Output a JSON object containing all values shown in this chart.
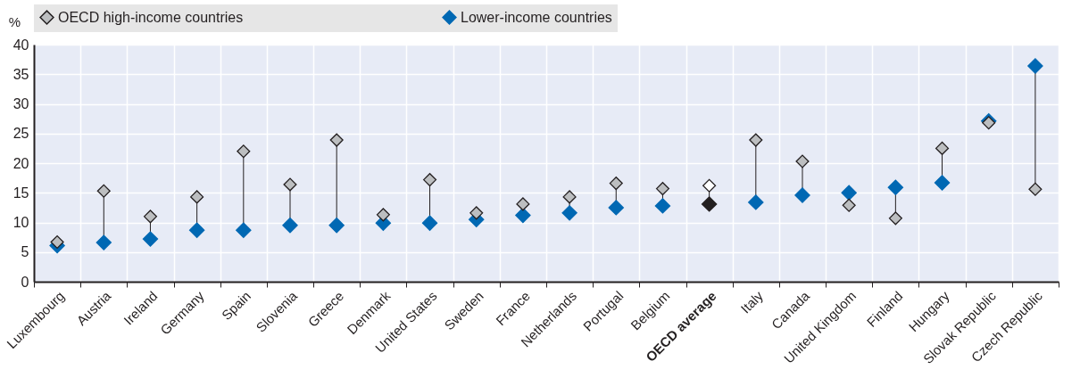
{
  "chart_data": {
    "type": "scatter",
    "ylabel": "%",
    "categories": [
      "Luxembourg",
      "Austria",
      "Ireland",
      "Germany",
      "Spain",
      "Slovenia",
      "Greece",
      "Denmark",
      "United States",
      "Sweden",
      "France",
      "Netherlands",
      "Portugal",
      "Belgium",
      "OECD average",
      "Italy",
      "Canada",
      "United Kingdom",
      "Finland",
      "Hungary",
      "Slovak Republic",
      "Czech Republic"
    ],
    "ylim": [
      0,
      40
    ],
    "yticks": [
      0,
      5,
      10,
      15,
      20,
      25,
      30,
      35,
      40
    ],
    "grid": true,
    "legend": "top",
    "marker": "diamond",
    "series": [
      {
        "name": "OECD high-income countries",
        "color": "#bcbec0",
        "colors": [
          "#bcbec0",
          "#bcbec0",
          "#bcbec0",
          "#bcbec0",
          "#bcbec0",
          "#bcbec0",
          "#bcbec0",
          "#bcbec0",
          "#bcbec0",
          "#bcbec0",
          "#bcbec0",
          "#bcbec0",
          "#bcbec0",
          "#bcbec0",
          "#ffffff",
          "#bcbec0",
          "#bcbec0",
          "#bcbec0",
          "#bcbec0",
          "#bcbec0",
          "#bcbec0",
          "#bcbec0"
        ],
        "values": [
          6.7,
          15.3,
          11.0,
          14.3,
          22.0,
          16.4,
          23.9,
          11.3,
          17.2,
          11.6,
          13.1,
          14.3,
          16.6,
          15.7,
          16.2,
          23.9,
          20.3,
          12.9,
          10.7,
          22.5,
          26.8,
          15.6
        ]
      },
      {
        "name": "Lower-income countries",
        "color": "#0068b3",
        "colors": [
          "#0068b3",
          "#0068b3",
          "#0068b3",
          "#0068b3",
          "#0068b3",
          "#0068b3",
          "#0068b3",
          "#0068b3",
          "#0068b3",
          "#0068b3",
          "#0068b3",
          "#0068b3",
          "#0068b3",
          "#0068b3",
          "#231f20",
          "#0068b3",
          "#0068b3",
          "#0068b3",
          "#0068b3",
          "#0068b3",
          "#0068b3",
          "#0068b3"
        ],
        "values": [
          6.1,
          6.6,
          7.2,
          8.7,
          8.7,
          9.5,
          9.5,
          9.9,
          9.9,
          10.5,
          11.2,
          11.6,
          12.5,
          12.8,
          13.1,
          13.4,
          14.6,
          15.0,
          15.9,
          16.7,
          27.1,
          36.4
        ]
      }
    ]
  }
}
